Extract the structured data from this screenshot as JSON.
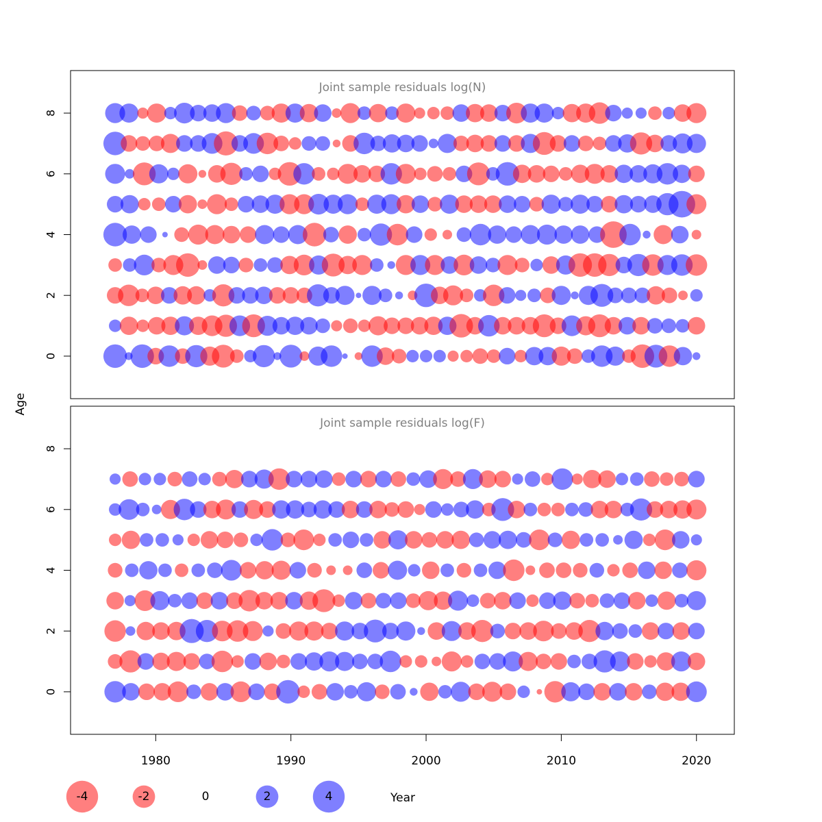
{
  "chart_data": {
    "type": "scatter",
    "description_type": "bubble residual plot (positive residuals blue, negative red; circle area proportional to magnitude)",
    "y_axis_label": "Age",
    "x_axis_label": "Year",
    "colors": {
      "positive": "#0000ff",
      "negative": "#ff0000"
    },
    "fill_opacity": 0.5,
    "years_first": 1977,
    "years_last": 2020,
    "x_ticks": [
      1980,
      1990,
      2000,
      2010,
      2020
    ],
    "xlim": [
      1973.7,
      2022.8
    ],
    "legend": {
      "values": [
        -4,
        -2,
        0,
        2,
        4
      ],
      "labels": [
        "-4",
        "-2",
        "0",
        "2",
        "4"
      ]
    },
    "panels": [
      {
        "title": "Joint sample residuals log(N)",
        "ages": [
          0,
          1,
          2,
          3,
          4,
          5,
          6,
          7,
          8
        ],
        "y_ticks": [
          0,
          2,
          4,
          6,
          8
        ],
        "ylim": [
          -1.4,
          9.4
        ],
        "residuals": {
          "0": [
            1.8,
            0.2,
            1.8,
            -0.9,
            1.5,
            -0.8,
            1.6,
            -1.2,
            -1.7,
            -0.6,
            0.5,
            1.6,
            0.2,
            1.7,
            -0.3,
            1.2,
            1.5,
            0.1,
            -0.2,
            1.5,
            -1.0,
            -0.7,
            0.5,
            0.5,
            0.5,
            -0.4,
            -0.5,
            -0.8,
            -0.6,
            0.9,
            -0.5,
            1.1,
            1.1,
            -1.2,
            -0.8,
            0.6,
            1.5,
            1.2,
            -0.6,
            -1.8,
            1.7,
            -1.5,
            1.1,
            0.2
          ],
          "1": [
            0.5,
            -1.1,
            -0.5,
            -1.0,
            -1.1,
            1.2,
            -1.1,
            -1.4,
            -1.6,
            1.4,
            -1.7,
            1.3,
            1.0,
            1.1,
            1.0,
            0.7,
            -0.4,
            -0.7,
            -0.5,
            -1.2,
            -0.9,
            -0.9,
            -1.0,
            -1.1,
            1.1,
            -1.8,
            -1.0,
            1.5,
            -1.0,
            -1.0,
            -1.0,
            -1.7,
            -0.9,
            1.4,
            -1.2,
            -1.7,
            -1.0,
            1.0,
            -1.0,
            0.8,
            0.7,
            0.6,
            -1.0
          ],
          "2": [
            -0.9,
            -1.5,
            -0.6,
            -1.0,
            0.9,
            -1.1,
            -1.1,
            0.5,
            -1.6,
            0.9,
            0.9,
            1.0,
            -0.9,
            -0.9,
            -0.8,
            1.6,
            0.9,
            1.2,
            0.1,
            1.2,
            0.6,
            0.2,
            -0.3,
            1.8,
            -1.0,
            -1.3,
            -0.6,
            0.5,
            -1.5,
            0.9,
            0.4,
            0.6,
            -0.8,
            1.2,
            0.2,
            1.2,
            1.7,
            0.8,
            0.8,
            0.8,
            -1.1,
            -0.8,
            -0.3,
            0.5
          ],
          "3": [
            -0.6,
            0.6,
            1.4,
            -0.7,
            -1.3,
            -1.8,
            -0.3,
            1.0,
            0.9,
            -0.7,
            0.6,
            0.8,
            -1.1,
            -1.4,
            1.2,
            -1.7,
            -1.1,
            -1.3,
            0.6,
            0.2,
            -1.3,
            1.3,
            -1.3,
            1.0,
            -1.4,
            1.0,
            0.7,
            -1.3,
            -0.7,
            0.5,
            -1.0,
            1.2,
            -1.8,
            -1.8,
            -1.6,
            0.9,
            1.6,
            -1.5,
            1.3,
            1.5,
            -1.5
          ],
          "4": [
            1.8,
            1.1,
            0.9,
            0.1,
            -0.7,
            -1.3,
            -1.2,
            -1.0,
            -0.9,
            1.2,
            0.9,
            1.2,
            -1.8,
            0.8,
            -1.1,
            0.6,
            1.6,
            -1.5,
            0.9,
            -0.5,
            -0.3,
            0.7,
            1.5,
            1.1,
            0.9,
            1.2,
            1.3,
            1.1,
            1.1,
            0.9,
            -2.3,
            1.5,
            0.2,
            -1.2,
            1.0,
            -0.3
          ],
          "5": [
            0.9,
            1.1,
            -0.5,
            -0.6,
            0.9,
            -1.1,
            -0.3,
            -1.3,
            -0.6,
            0.9,
            1.0,
            1.2,
            -1.3,
            -1.3,
            1.4,
            1.2,
            1.3,
            -0.6,
            1.2,
            1.3,
            -1.1,
            1.0,
            -0.7,
            1.2,
            -1.0,
            -1.0,
            -1.0,
            1.0,
            0.9,
            -0.7,
            1.2,
            0.7,
            1.2,
            0.9,
            -0.9,
            1.1,
            0.9,
            1.0,
            1.6,
            2.3,
            -1.3
          ],
          "6": [
            1.3,
            0.3,
            -1.7,
            1.2,
            0.5,
            -1.2,
            -0.2,
            -1.0,
            -1.6,
            0.6,
            0.9,
            -0.5,
            -1.8,
            1.5,
            -0.6,
            -0.5,
            -1.3,
            -1.0,
            -0.9,
            1.5,
            -1.3,
            -0.5,
            -0.8,
            -0.6,
            0.9,
            -1.7,
            0.6,
            1.8,
            -1.1,
            -1.0,
            -0.9,
            -0.6,
            -1.1,
            -1.3,
            -1.0,
            1.1,
            1.0,
            1.2,
            1.5,
            1.1,
            -0.9
          ],
          "7": [
            1.8,
            -0.9,
            -0.7,
            -0.8,
            -1.2,
            0.9,
            0.9,
            1.4,
            -1.9,
            0.9,
            1.4,
            -1.5,
            -0.8,
            -0.5,
            0.7,
            0.7,
            -0.2,
            -0.9,
            1.5,
            0.8,
            1.1,
            1.0,
            0.9,
            0.3,
            1.2,
            -0.8,
            -1.0,
            -0.9,
            0.9,
            -0.9,
            1.2,
            -1.7,
            -0.9,
            0.9,
            -0.8,
            -0.6,
            0.9,
            1.1,
            -1.6,
            -1.0,
            0.9,
            1.3,
            1.2
          ],
          "8": [
            1.3,
            1.2,
            -0.4,
            -1.2,
            0.5,
            1.4,
            0.9,
            1.0,
            1.3,
            -0.8,
            0.7,
            -0.7,
            -1.2,
            1.2,
            -1.1,
            1.0,
            -0.3,
            -1.3,
            0.6,
            -1.1,
            0.6,
            -1.2,
            -0.4,
            -0.5,
            -0.6,
            1.0,
            -1.1,
            -1.0,
            0.9,
            -1.4,
            1.2,
            1.2,
            0.5,
            -1.1,
            -1.2,
            -1.5,
            0.9,
            0.4,
            0.4,
            -0.6,
            0.5,
            -1.0,
            -1.3
          ]
        }
      },
      {
        "title": "Joint sample residuals log(F)",
        "ages": [
          0,
          1,
          2,
          3,
          4,
          5,
          6,
          7
        ],
        "y_ticks": [
          0,
          2,
          4,
          6,
          8
        ],
        "ylim": [
          -1.4,
          9.4
        ],
        "residuals": {
          "0": [
            1.5,
            1.0,
            -0.9,
            -1.0,
            -1.4,
            0.7,
            -1.0,
            1.0,
            -1.4,
            0.9,
            -0.9,
            1.8,
            -0.5,
            -0.8,
            1.0,
            0.6,
            1.2,
            -0.7,
            0.8,
            0.2,
            -1.1,
            0.6,
            1.3,
            -0.9,
            -1.3,
            -0.9,
            0.5,
            -0.1,
            -1.5,
            1.2,
            0.9,
            -1.0,
            1.0,
            -1.0,
            0.7,
            -1.1,
            -1.1,
            1.4
          ],
          "1": [
            -0.7,
            -1.6,
            0.9,
            -1.0,
            -1.2,
            -0.9,
            0.8,
            -1.5,
            -0.5,
            0.9,
            -1.0,
            -0.6,
            0.9,
            1.1,
            1.3,
            1.2,
            0.8,
            0.8,
            1.5,
            -0.5,
            -0.5,
            -0.3,
            -1.3,
            -0.5,
            0.8,
            0.9,
            1.3,
            -1.2,
            -0.8,
            -0.9,
            0.6,
            0.8,
            1.6,
            1.3,
            -0.9,
            -0.5,
            -1.1,
            1.3,
            -1.0
          ],
          "2": [
            -1.5,
            0.3,
            -1.1,
            -1.0,
            -1.1,
            1.9,
            1.6,
            -1.4,
            -1.5,
            -1.3,
            0.4,
            -0.8,
            -1.2,
            -1.2,
            -0.9,
            1.2,
            0.9,
            1.7,
            0.9,
            1.2,
            0.2,
            -1.0,
            1.3,
            -1.0,
            -1.6,
            0.7,
            -0.9,
            -1.0,
            -1.4,
            -0.8,
            -1.0,
            -1.6,
            1.1,
            0.8,
            0.6,
            -1.0,
            0.9,
            -1.0,
            0.9
          ],
          "3": [
            -1.0,
            0.4,
            -1.4,
            1.2,
            0.6,
            0.9,
            -0.9,
            1.0,
            -0.9,
            -1.5,
            -1.0,
            -1.0,
            1.0,
            -1.1,
            -1.7,
            -0.5,
            1.0,
            -0.8,
            0.8,
            0.9,
            -0.7,
            -1.2,
            -1.1,
            1.3,
            0.5,
            -0.8,
            -1.0,
            0.9,
            -0.5,
            0.9,
            1.1,
            -0.8,
            -0.6,
            0.7,
            0.9,
            -1.0,
            0.5,
            -1.1,
            0.6,
            1.2
          ],
          "4": [
            -0.7,
            0.6,
            1.1,
            0.6,
            -0.6,
            0.6,
            0.8,
            1.4,
            -0.9,
            -1.1,
            -1.2,
            0.9,
            -0.7,
            -0.3,
            -0.3,
            0.8,
            -0.9,
            1.2,
            0.5,
            -1.0,
            0.6,
            -0.7,
            0.6,
            1.0,
            -1.5,
            -0.3,
            -0.8,
            -0.8,
            -0.7,
            0.7,
            -0.5,
            -0.8,
            1.0,
            -1.0,
            0.8,
            -1.3
          ],
          "5": [
            -0.5,
            -1.1,
            0.6,
            0.6,
            0.4,
            -0.5,
            -1.0,
            -0.9,
            -0.7,
            0.5,
            1.5,
            -0.7,
            -1.4,
            -0.5,
            0.6,
            0.9,
            0.6,
            -1.0,
            1.2,
            -1.0,
            -0.8,
            -1.0,
            -1.1,
            0.7,
            1.0,
            1.1,
            0.8,
            -1.4,
            0.7,
            -1.1,
            0.6,
            0.6,
            0.3,
            1.1,
            -0.5,
            -1.4,
            1.0,
            0.4
          ],
          "6": [
            0.5,
            1.4,
            0.6,
            0.3,
            -1.2,
            1.5,
            0.9,
            -1.0,
            -1.3,
            0.9,
            -1.2,
            -0.9,
            1.1,
            1.1,
            0.8,
            1.1,
            0.9,
            -1.0,
            0.9,
            -1.0,
            -0.7,
            -0.9,
            -0.4,
            0.9,
            0.5,
            0.8,
            1.1,
            -0.6,
            1.7,
            -1.0,
            0.6,
            -0.6,
            -0.6,
            0.6,
            0.7,
            -1.0,
            -1.0,
            0.6,
            1.6,
            -0.9,
            -1.0,
            -1.1,
            -1.3
          ],
          "7": [
            0.4,
            -0.8,
            0.5,
            0.5,
            -0.7,
            0.8,
            0.5,
            -0.7,
            -1.1,
            0.9,
            1.2,
            -1.5,
            0.9,
            0.9,
            1.0,
            -0.6,
            0.9,
            -0.9,
            0.9,
            -0.8,
            0.6,
            1.0,
            -1.3,
            -0.8,
            1.3,
            -1.0,
            -0.9,
            0.4,
            0.8,
            -0.5,
            1.5,
            -0.4,
            -1.1,
            -1.0,
            0.5,
            0.6,
            -0.8,
            -0.6,
            -0.7,
            0.9
          ]
        }
      }
    ]
  }
}
